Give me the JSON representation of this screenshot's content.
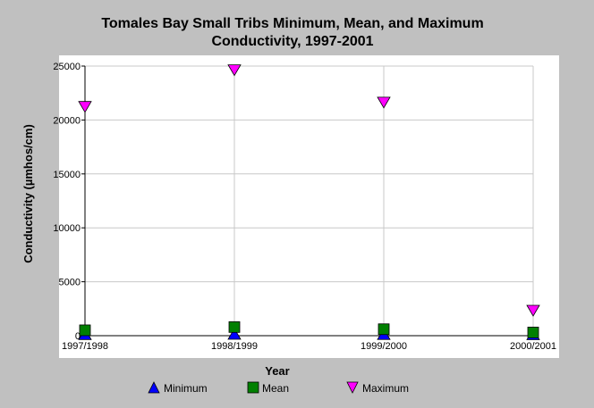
{
  "chart_data": {
    "type": "scatter",
    "title": [
      "Tomales Bay Small Tribs Minimum, Mean, and Maximum",
      "Conductivity, 1997-2001"
    ],
    "xlabel": "Year",
    "ylabel": "Conductivity (µmhos/cm)",
    "categories": [
      "1997/1998",
      "1998/1999",
      "1999/2000",
      "2000/2001"
    ],
    "ylim": [
      0,
      25000
    ],
    "yticks": [
      0,
      5000,
      10000,
      15000,
      20000,
      25000
    ],
    "ytick_labels": [
      "0",
      "5000",
      "10000",
      "15000",
      "20000",
      "25000"
    ],
    "grid": "vertical",
    "legend_position": "bottom",
    "series": [
      {
        "name": "Minimum",
        "values": [
          50,
          80,
          60,
          40
        ],
        "color": "#0000ff",
        "marker": "triangle-up"
      },
      {
        "name": "Mean",
        "values": [
          500,
          800,
          600,
          300
        ],
        "color": "#008000",
        "marker": "square"
      },
      {
        "name": "Maximum",
        "values": [
          21300,
          24700,
          21700,
          2400
        ],
        "color": "#ff00ff",
        "marker": "triangle-down"
      }
    ]
  }
}
